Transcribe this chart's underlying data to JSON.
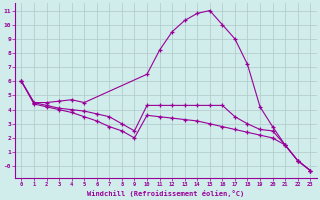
{
  "xlabel": "Windchill (Refroidissement éolien,°C)",
  "bg_color": "#d0eceb",
  "line_color": "#990099",
  "grid_color": "#b0c8c8",
  "xlim": [
    -0.5,
    23.5
  ],
  "ylim": [
    -0.8,
    11.5
  ],
  "xticks": [
    0,
    1,
    2,
    3,
    4,
    5,
    6,
    7,
    8,
    9,
    10,
    11,
    12,
    13,
    14,
    15,
    16,
    17,
    18,
    19,
    20,
    21,
    22,
    23
  ],
  "yticks": [
    0,
    1,
    2,
    3,
    4,
    5,
    6,
    7,
    8,
    9,
    10,
    11
  ],
  "ytick_labels": [
    "-0",
    "1",
    "2",
    "3",
    "4",
    "5",
    "6",
    "7",
    "8",
    "9",
    "10",
    "11"
  ],
  "series1": [
    [
      0,
      6.0
    ],
    [
      1,
      4.5
    ],
    [
      2,
      4.5
    ],
    [
      3,
      4.6
    ],
    [
      4,
      4.7
    ],
    [
      5,
      4.5
    ],
    [
      10,
      6.5
    ],
    [
      11,
      8.2
    ],
    [
      12,
      9.5
    ],
    [
      13,
      10.3
    ],
    [
      14,
      10.8
    ],
    [
      15,
      11.0
    ],
    [
      16,
      10.0
    ],
    [
      17,
      9.0
    ],
    [
      18,
      7.2
    ],
    [
      19,
      4.2
    ],
    [
      20,
      2.8
    ],
    [
      21,
      1.5
    ],
    [
      22,
      0.4
    ],
    [
      23,
      -0.3
    ]
  ],
  "series2": [
    [
      0,
      6.0
    ],
    [
      1,
      4.5
    ],
    [
      2,
      4.3
    ],
    [
      3,
      4.1
    ],
    [
      4,
      4.0
    ],
    [
      5,
      3.9
    ],
    [
      6,
      3.7
    ],
    [
      7,
      3.5
    ],
    [
      8,
      3.0
    ],
    [
      9,
      2.5
    ],
    [
      10,
      4.3
    ],
    [
      11,
      4.3
    ],
    [
      12,
      4.3
    ],
    [
      13,
      4.3
    ],
    [
      14,
      4.3
    ],
    [
      15,
      4.3
    ],
    [
      16,
      4.3
    ],
    [
      17,
      3.5
    ],
    [
      18,
      3.0
    ],
    [
      19,
      2.6
    ],
    [
      20,
      2.5
    ],
    [
      21,
      1.5
    ],
    [
      22,
      0.4
    ],
    [
      23,
      -0.3
    ]
  ],
  "series3": [
    [
      0,
      6.0
    ],
    [
      1,
      4.4
    ],
    [
      2,
      4.2
    ],
    [
      3,
      4.0
    ],
    [
      4,
      3.8
    ],
    [
      5,
      3.5
    ],
    [
      6,
      3.2
    ],
    [
      7,
      2.8
    ],
    [
      8,
      2.5
    ],
    [
      9,
      2.0
    ],
    [
      10,
      3.6
    ],
    [
      11,
      3.5
    ],
    [
      12,
      3.4
    ],
    [
      13,
      3.3
    ],
    [
      14,
      3.2
    ],
    [
      15,
      3.0
    ],
    [
      16,
      2.8
    ],
    [
      17,
      2.6
    ],
    [
      18,
      2.4
    ],
    [
      19,
      2.2
    ],
    [
      20,
      2.0
    ],
    [
      21,
      1.5
    ],
    [
      22,
      0.4
    ],
    [
      23,
      -0.3
    ]
  ]
}
